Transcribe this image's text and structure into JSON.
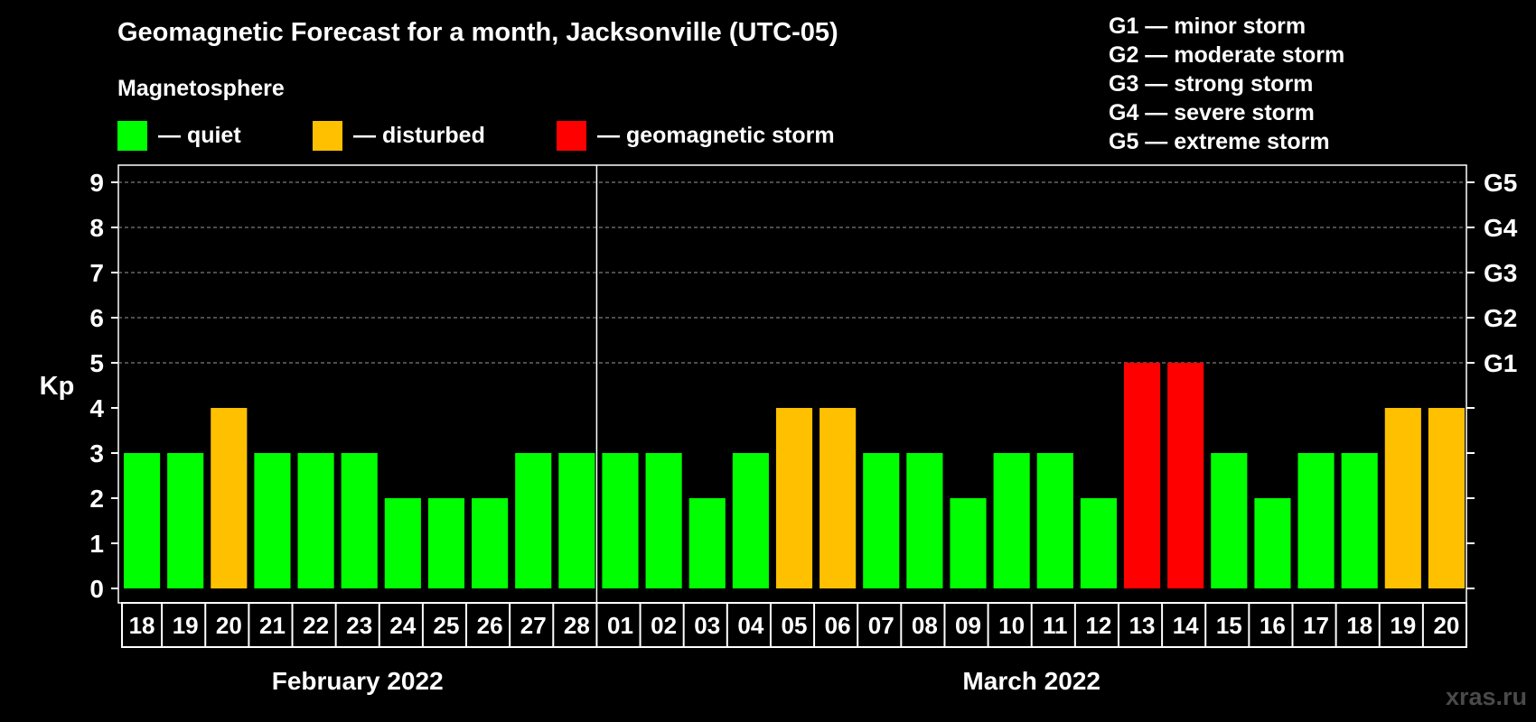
{
  "title": "Geomagnetic Forecast for a month, Jacksonville (UTC-05)",
  "subtitle": "Magnetosphere",
  "legend": [
    {
      "label": "— quiet",
      "color": "#00ff00"
    },
    {
      "label": "— disturbed",
      "color": "#ffc000"
    },
    {
      "label": "— geomagnetic storm",
      "color": "#ff0000"
    }
  ],
  "g_legend": [
    "G1 — minor storm",
    "G2 — moderate storm",
    "G3 — strong storm",
    "G4 — severe storm",
    "G5 — extreme storm"
  ],
  "watermark": "xras.ru",
  "colors": {
    "quiet": "#00ff00",
    "disturbed": "#ffc000",
    "storm": "#ff0000",
    "background": "#000000",
    "axis": "#ffffff"
  },
  "chart_data": {
    "type": "bar",
    "ylabel": "Kp",
    "ylim": [
      0,
      9
    ],
    "yticks": [
      "0",
      "1",
      "2",
      "3",
      "4",
      "5",
      "6",
      "7",
      "8",
      "9"
    ],
    "right_ticks": [
      {
        "kp": 5,
        "label": "G1"
      },
      {
        "kp": 6,
        "label": "G2"
      },
      {
        "kp": 7,
        "label": "G3"
      },
      {
        "kp": 8,
        "label": "G4"
      },
      {
        "kp": 9,
        "label": "G5"
      }
    ],
    "grid": "dashed horizontal at Kp 5-9",
    "categories": [
      "18",
      "19",
      "20",
      "21",
      "22",
      "23",
      "24",
      "25",
      "26",
      "27",
      "28",
      "01",
      "02",
      "03",
      "04",
      "05",
      "06",
      "07",
      "08",
      "09",
      "10",
      "11",
      "12",
      "13",
      "14",
      "15",
      "16",
      "17",
      "18",
      "19",
      "20"
    ],
    "values": [
      3,
      3,
      4,
      3,
      3,
      3,
      2,
      2,
      2,
      3,
      3,
      3,
      3,
      2,
      3,
      4,
      4,
      3,
      3,
      2,
      3,
      3,
      2,
      5,
      5,
      3,
      2,
      3,
      3,
      4,
      4
    ],
    "status": [
      "quiet",
      "quiet",
      "disturbed",
      "quiet",
      "quiet",
      "quiet",
      "quiet",
      "quiet",
      "quiet",
      "quiet",
      "quiet",
      "quiet",
      "quiet",
      "quiet",
      "quiet",
      "disturbed",
      "disturbed",
      "quiet",
      "quiet",
      "quiet",
      "quiet",
      "quiet",
      "quiet",
      "storm",
      "storm",
      "quiet",
      "quiet",
      "quiet",
      "quiet",
      "disturbed",
      "disturbed"
    ],
    "months": [
      {
        "label": "February 2022",
        "days": 11
      },
      {
        "label": "March 2022",
        "days": 20
      }
    ]
  }
}
